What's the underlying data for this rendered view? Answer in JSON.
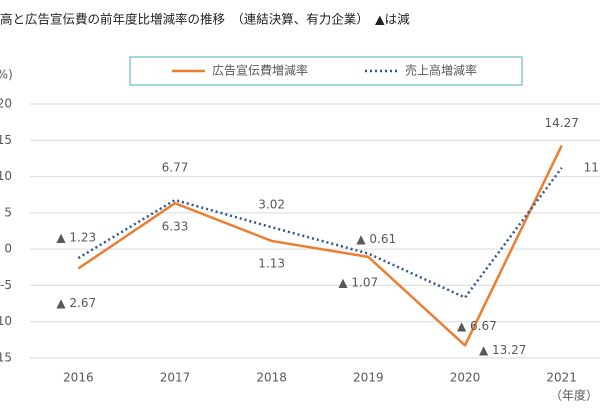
{
  "chart_data": {
    "type": "line",
    "title": "高と広告宣伝費の前年度比増減率の推移　（連結決算、有力企業）　▲は減",
    "y_label": "(%)",
    "x_label": "（年度）",
    "categories": [
      "2016",
      "2017",
      "2018",
      "2019",
      "2020",
      "2021"
    ],
    "series": [
      {
        "name": "広告宣伝費増減率",
        "color": "#ed7d31",
        "style": "solid",
        "values": [
          -2.67,
          6.33,
          1.13,
          -1.07,
          -13.27,
          14.27
        ],
        "value_labels": [
          "▲ 2.67",
          "6.33",
          "1.13",
          "▲ 1.07",
          "▲ 13.27",
          "14.27"
        ]
      },
      {
        "name": "売上高増減率",
        "color": "#2e5597",
        "style": "dotted",
        "values": [
          -1.23,
          6.77,
          3.02,
          -0.61,
          -6.67,
          11.2
        ],
        "value_labels": [
          "▲ 1.23",
          "6.77",
          "3.02",
          "▲ 0.61",
          "▲ 6.67",
          "11"
        ]
      }
    ],
    "ylim": [
      -15,
      20
    ],
    "yticks": [
      -15,
      -10,
      -5,
      0,
      5,
      10,
      15,
      20
    ],
    "grid": true
  }
}
